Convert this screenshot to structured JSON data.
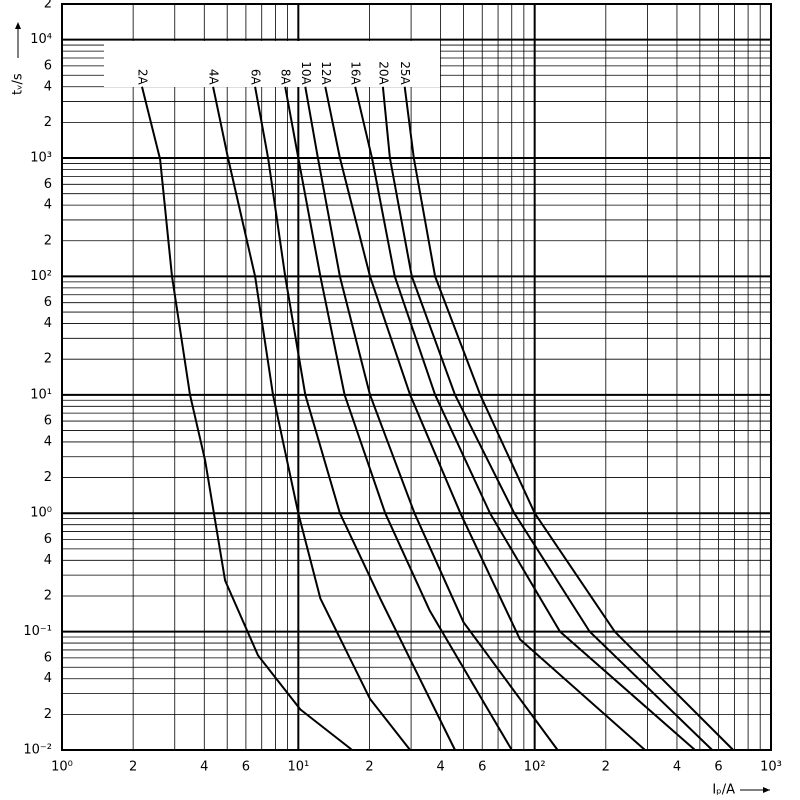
{
  "chart_data": {
    "type": "line",
    "xlabel": "Iₚ/A",
    "ylabel": "tᵥ/s",
    "xlog": true,
    "ylog": true,
    "grid": true,
    "minor_grid": true,
    "xlim": [
      1,
      1000
    ],
    "ylim": [
      0.01,
      20000
    ],
    "xticks": [
      {
        "value": 1,
        "label": "10⁰"
      },
      2,
      4,
      6,
      {
        "value": 10,
        "label": "10¹"
      },
      {
        "value": 20,
        "label": "2"
      },
      {
        "value": 40,
        "label": "4"
      },
      {
        "value": 60,
        "label": "6"
      },
      {
        "value": 100,
        "label": "10²"
      },
      {
        "value": 200,
        "label": "2"
      },
      {
        "value": 400,
        "label": "4"
      },
      {
        "value": 600,
        "label": "6"
      },
      {
        "value": 1000,
        "label": "10³"
      }
    ],
    "yticks": [
      {
        "value": 0.01,
        "label": "10⁻²"
      },
      {
        "value": 0.02,
        "label": "2"
      },
      {
        "value": 0.04,
        "label": "4"
      },
      {
        "value": 0.06,
        "label": "6"
      },
      {
        "value": 0.1,
        "label": "10⁻¹"
      },
      {
        "value": 0.2,
        "label": "2"
      },
      {
        "value": 0.4,
        "label": "4"
      },
      {
        "value": 0.6,
        "label": "6"
      },
      {
        "value": 1,
        "label": "10⁰"
      },
      2,
      4,
      6,
      {
        "value": 10,
        "label": "10¹"
      },
      {
        "value": 20,
        "label": "2"
      },
      {
        "value": 40,
        "label": "4"
      },
      {
        "value": 60,
        "label": "6"
      },
      {
        "value": 100,
        "label": "10²"
      },
      {
        "value": 200,
        "label": "2"
      },
      {
        "value": 400,
        "label": "4"
      },
      {
        "value": 600,
        "label": "6"
      },
      {
        "value": 1000,
        "label": "10³"
      },
      {
        "value": 2000,
        "label": "2"
      },
      {
        "value": 4000,
        "label": "4"
      },
      {
        "value": 6000,
        "label": "6"
      },
      {
        "value": 10000,
        "label": "10⁴"
      },
      {
        "value": 20000,
        "label": "2"
      }
    ],
    "series": [
      {
        "name": "2A",
        "color": "#000000",
        "x": [
          2.18,
          2.6,
          2.92,
          3.48,
          4.03,
          4.9,
          6.75,
          10.2,
          16.9
        ],
        "values": [
          4000,
          975,
          100,
          10,
          2.8,
          0.27,
          0.063,
          0.022,
          0.01
        ]
      },
      {
        "name": "4A",
        "color": "#000000",
        "x": [
          4.36,
          5.04,
          6.56,
          7.81,
          10,
          12.4,
          20.1,
          29.7
        ],
        "values": [
          4000,
          1000,
          100,
          10,
          1,
          0.19,
          0.027,
          0.01
        ]
      },
      {
        "name": "6A",
        "color": "#000000",
        "x": [
          6.56,
          7.45,
          8.8,
          10.7,
          15,
          22.2,
          46
        ],
        "values": [
          4000,
          1000,
          100,
          10,
          1,
          0.19,
          0.01
        ]
      },
      {
        "name": "8A",
        "color": "#000000",
        "x": [
          8.8,
          10,
          12.4,
          15.7,
          23.3,
          36,
          80
        ],
        "values": [
          4000,
          1000,
          100,
          10,
          1,
          0.15,
          0.01
        ]
      },
      {
        "name": "10A",
        "color": "#000000",
        "x": [
          10.7,
          12.1,
          15,
          20.1,
          31,
          50,
          125
        ],
        "values": [
          4000,
          1000,
          100,
          10,
          1,
          0.12,
          0.01
        ]
      },
      {
        "name": "12A",
        "color": "#000000",
        "x": [
          13,
          15,
          20.1,
          29.7,
          48.5,
          86.7,
          293
        ],
        "values": [
          4000,
          1000,
          100,
          10,
          1,
          0.086,
          0.01
        ]
      },
      {
        "name": "16A",
        "color": "#000000",
        "x": [
          17.4,
          20.5,
          25.6,
          37.9,
          64.7,
          128,
          477
        ],
        "values": [
          4000,
          1000,
          100,
          10,
          1,
          0.1,
          0.01
        ]
      },
      {
        "name": "20A",
        "color": "#000000",
        "x": [
          22.8,
          24.4,
          30.2,
          46,
          82,
          171,
          564
        ],
        "values": [
          4000,
          1000,
          100,
          10,
          1,
          0.1,
          0.01
        ]
      },
      {
        "name": "25A",
        "color": "#000000",
        "x": [
          28.2,
          30.8,
          37.9,
          58.8,
          100,
          218,
          692
        ],
        "values": [
          4000,
          1000,
          100,
          10,
          1,
          0.1,
          0.01
        ]
      }
    ]
  }
}
